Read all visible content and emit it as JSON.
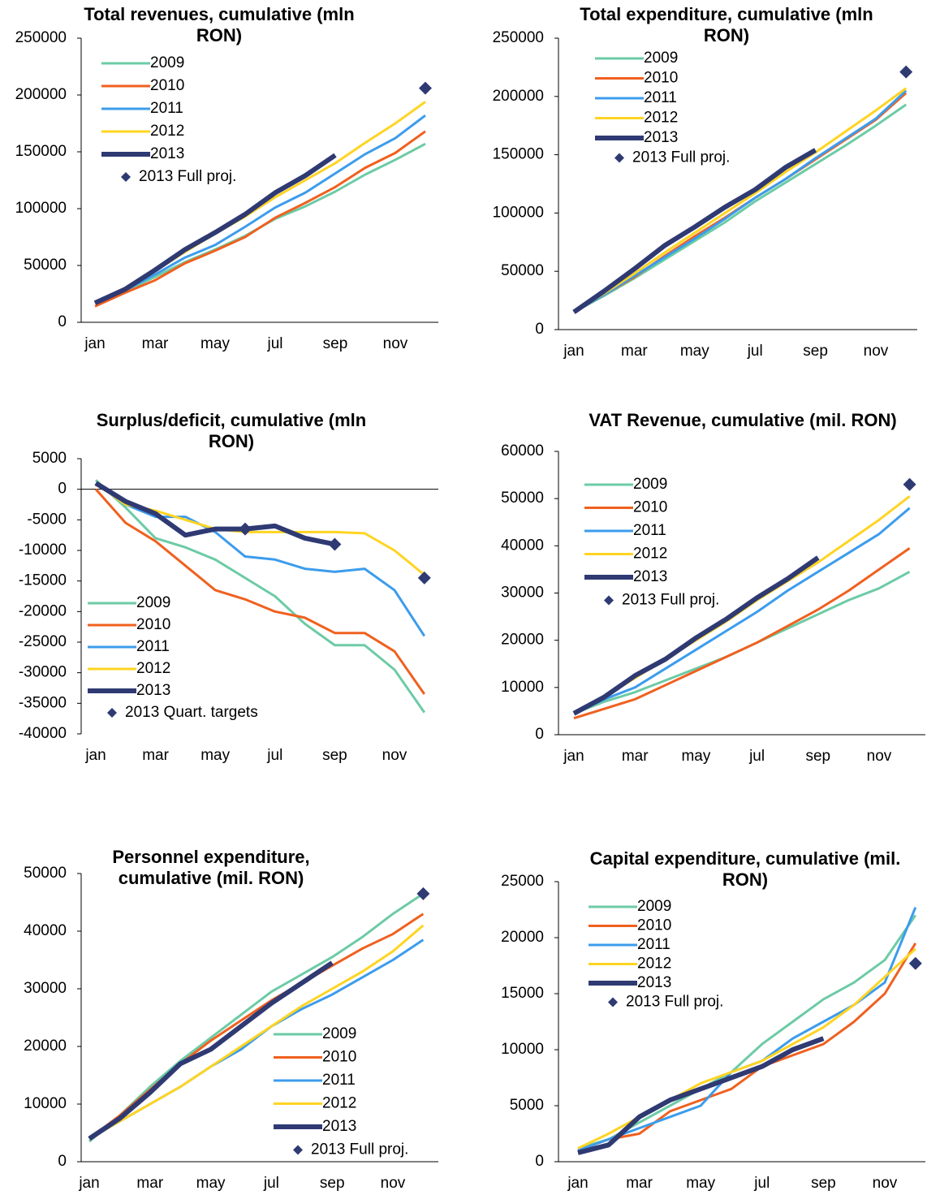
{
  "chart_data": [
    {
      "type": "line",
      "title": "Total revenues, cumulative (mln RON)",
      "legend": "upper left",
      "categories": [
        "jan",
        null,
        "mar",
        null,
        "may",
        null,
        "jul",
        null,
        "sep",
        null,
        "nov",
        null
      ],
      "ylim": [
        0,
        250000
      ],
      "yticks": [
        0,
        50000,
        100000,
        150000,
        200000,
        250000
      ],
      "series": [
        {
          "name": "2009",
          "color": "#6ccba5",
          "line_width": 3,
          "values": [
            17000,
            27000,
            40000,
            53000,
            64000,
            76000,
            91000,
            102000,
            115000,
            130000,
            143000,
            157000
          ]
        },
        {
          "name": "2010",
          "color": "#f0601f",
          "line_width": 3,
          "values": [
            14000,
            26000,
            37000,
            52000,
            63000,
            75000,
            92000,
            105000,
            119000,
            136000,
            149000,
            168000
          ]
        },
        {
          "name": "2011",
          "color": "#3c9cec",
          "line_width": 3,
          "values": [
            17000,
            28000,
            42000,
            57000,
            68000,
            84000,
            101000,
            114000,
            131000,
            148000,
            162000,
            182000
          ]
        },
        {
          "name": "2012",
          "color": "#ffd422",
          "line_width": 3,
          "values": [
            17000,
            29000,
            45000,
            62000,
            78000,
            93000,
            110000,
            125000,
            140000,
            158000,
            175000,
            194000
          ]
        },
        {
          "name": "2013",
          "color": "#2f3a73",
          "line_width": 6,
          "values": [
            17000,
            29000,
            46000,
            64000,
            79000,
            95000,
            114000,
            129000,
            147000,
            null,
            null,
            null
          ]
        },
        {
          "name": "2013 Full proj.",
          "color": "#2f3a73",
          "marker": "diamond",
          "values": [
            null,
            null,
            null,
            null,
            null,
            null,
            null,
            null,
            null,
            null,
            null,
            206000
          ]
        }
      ]
    },
    {
      "type": "line",
      "title": "Total expenditure, cumulative (mln RON)",
      "legend": "upper left",
      "categories": [
        "jan",
        null,
        "mar",
        null,
        "may",
        null,
        "jul",
        null,
        "sep",
        null,
        "nov",
        null
      ],
      "ylim": [
        0,
        250000
      ],
      "yticks": [
        0,
        50000,
        100000,
        150000,
        200000,
        250000
      ],
      "series": [
        {
          "name": "2009",
          "color": "#6ccba5",
          "line_width": 3,
          "values": [
            15000,
            29000,
            44000,
            60000,
            76000,
            92000,
            110000,
            126000,
            142000,
            158000,
            175000,
            193000
          ]
        },
        {
          "name": "2010",
          "color": "#f0601f",
          "line_width": 3,
          "values": [
            15000,
            30000,
            45000,
            63000,
            80000,
            96000,
            113000,
            129000,
            146000,
            163000,
            180000,
            203000
          ]
        },
        {
          "name": "2011",
          "color": "#3c9cec",
          "line_width": 3,
          "values": [
            15000,
            30000,
            46000,
            62000,
            78000,
            95000,
            113000,
            129000,
            147000,
            164000,
            181000,
            205000
          ]
        },
        {
          "name": "2012",
          "color": "#ffd422",
          "line_width": 3,
          "values": [
            15000,
            31000,
            48000,
            66000,
            83000,
            100000,
            117000,
            135000,
            152000,
            170000,
            188000,
            207000
          ]
        },
        {
          "name": "2013",
          "color": "#2f3a73",
          "line_width": 6,
          "values": [
            15000,
            33000,
            52000,
            72000,
            88000,
            105000,
            120000,
            139000,
            154000,
            null,
            null,
            null
          ]
        },
        {
          "name": "2013 Full proj.",
          "color": "#2f3a73",
          "marker": "diamond",
          "values": [
            null,
            null,
            null,
            null,
            null,
            null,
            null,
            null,
            null,
            null,
            null,
            221000
          ]
        }
      ]
    },
    {
      "type": "line",
      "title": "Surplus/deficit, cumulative (mln RON)",
      "legend": "lower left",
      "categories": [
        "jan",
        null,
        "mar",
        null,
        "may",
        null,
        "jul",
        null,
        "sep",
        null,
        "nov",
        null
      ],
      "ylim": [
        -40000,
        5000
      ],
      "yticks": [
        -40000,
        -35000,
        -30000,
        -25000,
        -20000,
        -15000,
        -10000,
        -5000,
        0,
        5000
      ],
      "series": [
        {
          "name": "2009",
          "color": "#6ccba5",
          "line_width": 3,
          "values": [
            1500,
            -3000,
            -8000,
            -9500,
            -11500,
            -14500,
            -17500,
            -22000,
            -25500,
            -25500,
            -29500,
            -36500
          ]
        },
        {
          "name": "2010",
          "color": "#f0601f",
          "line_width": 3,
          "values": [
            0,
            -5500,
            -8500,
            -12500,
            -16500,
            -18000,
            -20000,
            -21000,
            -23500,
            -23500,
            -26500,
            -33500
          ]
        },
        {
          "name": "2011",
          "color": "#3c9cec",
          "line_width": 3,
          "values": [
            1000,
            -2500,
            -4500,
            -4500,
            -7000,
            -11000,
            -11500,
            -13000,
            -13500,
            -13000,
            -16500,
            -24000
          ]
        },
        {
          "name": "2012",
          "color": "#ffd422",
          "line_width": 3,
          "values": [
            1000,
            -2500,
            -3500,
            -5000,
            -6500,
            -7000,
            -7000,
            -7000,
            -7000,
            -7200,
            -10000,
            -14000
          ]
        },
        {
          "name": "2013",
          "color": "#2f3a73",
          "line_width": 6,
          "values": [
            1000,
            -2000,
            -4000,
            -7500,
            -6500,
            -6500,
            -6000,
            -8000,
            -9000,
            null,
            null,
            null
          ]
        },
        {
          "name": "2013 Quart. targets",
          "color": "#2f3a73",
          "marker": "diamond",
          "values": [
            null,
            null,
            null,
            null,
            null,
            -6500,
            null,
            null,
            -9000,
            null,
            null,
            -14500
          ]
        }
      ]
    },
    {
      "type": "line",
      "title": "VAT Revenue, cumulative (mil. RON)",
      "legend": "upper left",
      "categories": [
        "jan",
        null,
        "mar",
        null,
        "may",
        null,
        "jul",
        null,
        "sep",
        null,
        "nov",
        null
      ],
      "ylim": [
        0,
        60000
      ],
      "yticks": [
        0,
        10000,
        20000,
        30000,
        40000,
        50000,
        60000
      ],
      "series": [
        {
          "name": "2009",
          "color": "#6ccba5",
          "line_width": 3,
          "values": [
            4500,
            7000,
            9000,
            11500,
            14000,
            16500,
            19500,
            22500,
            25500,
            28500,
            31000,
            34500
          ]
        },
        {
          "name": "2010",
          "color": "#f0601f",
          "line_width": 3,
          "values": [
            3500,
            5500,
            7500,
            10500,
            13500,
            16500,
            19500,
            23000,
            26500,
            30500,
            35000,
            39500
          ]
        },
        {
          "name": "2011",
          "color": "#3c9cec",
          "line_width": 3,
          "values": [
            4500,
            7500,
            10000,
            14000,
            18000,
            22000,
            26000,
            30500,
            34500,
            38500,
            42500,
            48000
          ]
        },
        {
          "name": "2012",
          "color": "#ffd422",
          "line_width": 3,
          "values": [
            4500,
            8000,
            12000,
            16000,
            20000,
            24000,
            28500,
            32500,
            36500,
            41000,
            45500,
            50500
          ]
        },
        {
          "name": "2013",
          "color": "#2f3a73",
          "line_width": 6,
          "values": [
            4500,
            8000,
            12500,
            16000,
            20500,
            24500,
            29000,
            33000,
            37500,
            null,
            null,
            null
          ]
        },
        {
          "name": "2013 Full proj.",
          "color": "#2f3a73",
          "marker": "diamond",
          "values": [
            null,
            null,
            null,
            null,
            null,
            null,
            null,
            null,
            null,
            null,
            null,
            53000
          ]
        }
      ]
    },
    {
      "type": "line",
      "title": "Personnel expenditure, cumulative (mil. RON)",
      "legend": "lower right",
      "categories": [
        "jan",
        null,
        "mar",
        null,
        "may",
        null,
        "jul",
        null,
        "sep",
        null,
        "nov",
        null
      ],
      "ylim": [
        0,
        50000
      ],
      "yticks": [
        0,
        10000,
        20000,
        30000,
        40000,
        50000
      ],
      "series": [
        {
          "name": "2009",
          "color": "#6ccba5",
          "line_width": 3,
          "values": [
            3500,
            8000,
            13000,
            17500,
            21500,
            25500,
            29500,
            32500,
            35500,
            39000,
            43000,
            46500
          ]
        },
        {
          "name": "2010",
          "color": "#f0601f",
          "line_width": 3,
          "values": [
            4000,
            8000,
            12500,
            17000,
            21000,
            24500,
            28000,
            31000,
            34000,
            37000,
            39500,
            43000
          ]
        },
        {
          "name": "2011",
          "color": "#3c9cec",
          "line_width": 3,
          "values": [
            4000,
            7000,
            10000,
            13000,
            16500,
            19500,
            23500,
            26500,
            29000,
            32000,
            35000,
            38500
          ]
        },
        {
          "name": "2012",
          "color": "#ffd422",
          "line_width": 3,
          "values": [
            4000,
            7000,
            10000,
            13000,
            16500,
            20000,
            23500,
            27000,
            30000,
            33000,
            36500,
            41000
          ]
        },
        {
          "name": "2013",
          "color": "#2f3a73",
          "line_width": 6,
          "values": [
            4000,
            7500,
            12000,
            17000,
            19500,
            23500,
            27500,
            31000,
            34500,
            null,
            null,
            null
          ]
        },
        {
          "name": "2013 Full proj.",
          "color": "#2f3a73",
          "marker": "diamond",
          "values": [
            null,
            null,
            null,
            null,
            null,
            null,
            null,
            null,
            null,
            null,
            null,
            46500
          ]
        }
      ]
    },
    {
      "type": "line",
      "title": "Capital expenditure, cumulative (mil. RON)",
      "legend": "upper left",
      "categories": [
        "jan",
        null,
        "mar",
        null,
        "may",
        null,
        "jul",
        null,
        "sep",
        null,
        "nov",
        null
      ],
      "ylim": [
        0,
        25000
      ],
      "yticks": [
        0,
        5000,
        10000,
        15000,
        20000,
        25000
      ],
      "series": [
        {
          "name": "2009",
          "color": "#6ccba5",
          "line_width": 3,
          "values": [
            1200,
            2000,
            3500,
            5000,
            6500,
            8000,
            10500,
            12500,
            14500,
            16000,
            18000,
            22000
          ]
        },
        {
          "name": "2010",
          "color": "#f0601f",
          "line_width": 3,
          "values": [
            1000,
            2000,
            2500,
            4500,
            5500,
            6500,
            8500,
            9500,
            10500,
            12500,
            15000,
            19500
          ]
        },
        {
          "name": "2011",
          "color": "#3c9cec",
          "line_width": 3,
          "values": [
            1000,
            2000,
            3000,
            4000,
            5000,
            8000,
            9000,
            11000,
            12500,
            14000,
            16000,
            22700
          ]
        },
        {
          "name": "2012",
          "color": "#ffd422",
          "line_width": 3,
          "values": [
            1200,
            2500,
            4000,
            5500,
            7000,
            8000,
            9000,
            10500,
            12000,
            14000,
            16500,
            19000
          ]
        },
        {
          "name": "2013",
          "color": "#2f3a73",
          "line_width": 6,
          "values": [
            800,
            1500,
            4000,
            5500,
            6500,
            7500,
            8500,
            10000,
            11000,
            null,
            null,
            null
          ]
        },
        {
          "name": "2013 Full proj.",
          "color": "#2f3a73",
          "marker": "diamond",
          "values": [
            null,
            null,
            null,
            null,
            null,
            null,
            null,
            null,
            null,
            null,
            null,
            17700
          ]
        }
      ]
    }
  ]
}
